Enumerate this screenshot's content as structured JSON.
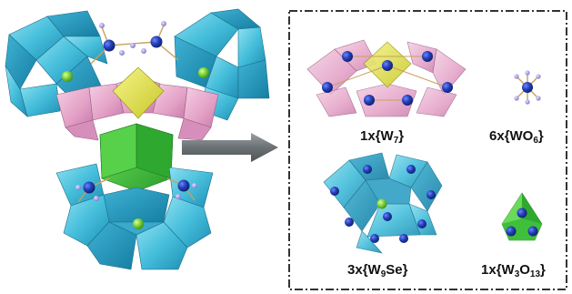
{
  "components": [
    {
      "id": "w7",
      "count": "1x",
      "formula": "{W",
      "sub": "7",
      "rest": "}"
    },
    {
      "id": "wo6",
      "count": "6x",
      "formula": "{WO",
      "sub": "6",
      "rest": "}"
    },
    {
      "id": "w9se",
      "count": "3x",
      "formula": "{W",
      "sub": "9",
      "rest": "Se}"
    },
    {
      "id": "w3o13",
      "count": "1x",
      "formula": "{W",
      "sub": "3",
      "rest": "O",
      "sub2": "13",
      "rest2": "}"
    }
  ],
  "colors": {
    "cyan_polyhedra": "#4cc2dd",
    "pink_polyhedra": "#e8a6cc",
    "yellow_polyhedra": "#e3e24a",
    "green_polyhedra": "#3fbf3a",
    "tungsten_atom": "#1f3aa8",
    "selenium_atom": "#7fd23a",
    "oxygen_atom": "#9b94e0",
    "arrow": "#6e7477",
    "box_border": "#333333"
  },
  "icons": [
    "polyoxometalate-cluster-icon",
    "arrow-right-icon"
  ]
}
